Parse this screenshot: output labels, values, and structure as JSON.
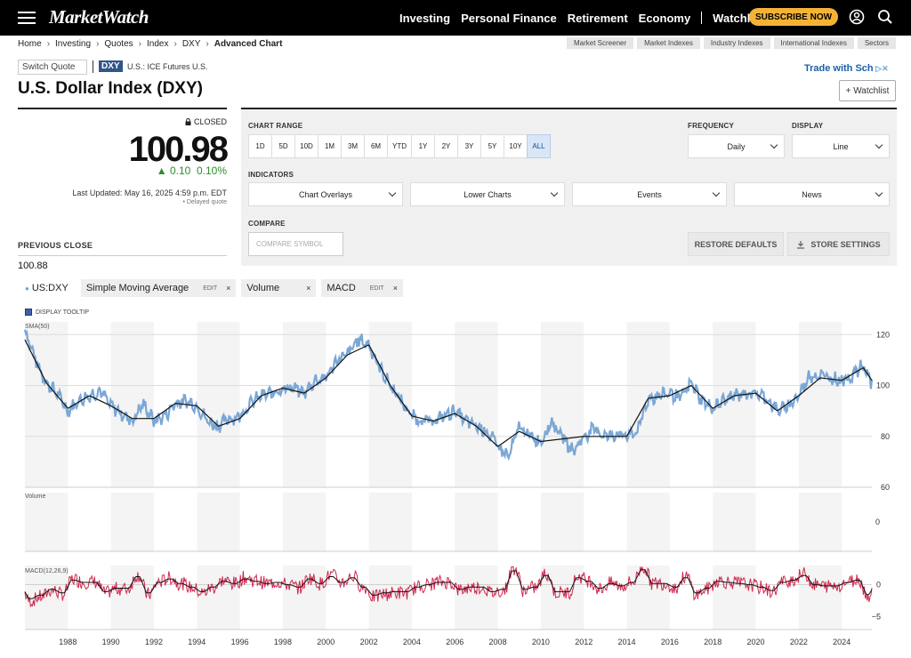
{
  "nav": {
    "logo": "MarketWatch",
    "links": [
      "Investing",
      "Personal Finance",
      "Retirement",
      "Economy"
    ],
    "watchlist": "Watchlist",
    "subscribe": "SUBSCRIBE NOW"
  },
  "breadcrumb": [
    "Home",
    "Investing",
    "Quotes",
    "Index",
    "DXY",
    "Advanced Chart"
  ],
  "top_tabs": [
    "Market Screener",
    "Market Indexes",
    "Industry Indexes",
    "International Indexes",
    "Sectors"
  ],
  "quote": {
    "switch": "Switch Quote",
    "symbol": "DXY",
    "exchange": "U.S.: ICE Futures U.S.",
    "title": "U.S. Dollar Index (DXY)",
    "status": "CLOSED",
    "price": "100.98",
    "change": "0.10",
    "change_pct": "0.10%",
    "updated": "Last Updated: May 16, 2025 4:59 p.m. EDT",
    "delayed": "Delayed quote",
    "prev_label": "PREVIOUS CLOSE",
    "prev_value": "100.88",
    "ad": "Trade with Sch",
    "watchlist_btn": "+ Watchlist"
  },
  "controls": {
    "range_label": "CHART RANGE",
    "ranges": [
      "1D",
      "5D",
      "10D",
      "1M",
      "3M",
      "6M",
      "YTD",
      "1Y",
      "2Y",
      "3Y",
      "5Y",
      "10Y",
      "ALL"
    ],
    "active_range": "ALL",
    "frequency_label": "FREQUENCY",
    "frequency": "Daily",
    "display_label": "DISPLAY",
    "display": "Line",
    "indicators_label": "INDICATORS",
    "indicators": [
      "Chart Overlays",
      "Lower Charts",
      "Events",
      "News"
    ],
    "compare_label": "COMPARE",
    "compare_placeholder": "COMPARE SYMBOL",
    "restore": "RESTORE DEFAULTS",
    "store": "STORE SETTINGS"
  },
  "chips": {
    "symbol": "US:DXY",
    "sma": "Simple Moving Average",
    "volume": "Volume",
    "macd": "MACD",
    "edit": "EDIT",
    "close": "×"
  },
  "tooltip_label": "DISPLAY TOOLTIP",
  "chart_data": {
    "type": "line",
    "price_panel_label": "SMA(50)",
    "volume_panel_label": "Volume",
    "macd_panel_label": "MACD(12,26,9)",
    "x_ticks": [
      "1988",
      "1990",
      "1992",
      "1994",
      "1996",
      "1998",
      "2000",
      "2002",
      "2004",
      "2006",
      "2008",
      "2010",
      "2012",
      "2014",
      "2016",
      "2018",
      "2020",
      "2022",
      "2024"
    ],
    "price_ticks": [
      120,
      100,
      80,
      60
    ],
    "price_ylim": [
      60,
      125
    ],
    "volume_ticks": [
      0
    ],
    "macd_ticks": [
      0,
      -5
    ],
    "macd_ylim": [
      -7,
      3
    ],
    "xlim": [
      1986.0,
      2025.4
    ],
    "series": [
      {
        "name": "US:DXY",
        "x": [
          1986.0,
          1986.5,
          1987.0,
          1987.5,
          1988.0,
          1988.5,
          1989.0,
          1989.5,
          1990.0,
          1990.5,
          1991.0,
          1991.5,
          1992.0,
          1992.5,
          1993.0,
          1993.5,
          1994.0,
          1994.5,
          1995.0,
          1995.5,
          1996.0,
          1996.5,
          1997.0,
          1997.5,
          1998.0,
          1998.5,
          1999.0,
          1999.5,
          2000.0,
          2000.5,
          2001.0,
          2001.5,
          2002.0,
          2002.5,
          2003.0,
          2003.5,
          2004.0,
          2004.5,
          2005.0,
          2005.5,
          2006.0,
          2006.5,
          2007.0,
          2007.5,
          2008.0,
          2008.5,
          2009.0,
          2009.5,
          2010.0,
          2010.5,
          2011.0,
          2011.5,
          2012.0,
          2012.5,
          2013.0,
          2013.5,
          2014.0,
          2014.5,
          2015.0,
          2015.5,
          2016.0,
          2016.5,
          2017.0,
          2017.5,
          2018.0,
          2018.5,
          2019.0,
          2019.5,
          2020.0,
          2020.5,
          2021.0,
          2021.5,
          2022.0,
          2022.5,
          2023.0,
          2023.5,
          2024.0,
          2024.5,
          2025.0,
          2025.4
        ],
        "values": [
          122,
          110,
          101,
          97,
          90,
          94,
          96,
          98,
          92,
          89,
          86,
          93,
          86,
          88,
          93,
          94,
          92,
          86,
          84,
          87,
          88,
          93,
          96,
          97,
          99,
          99,
          97,
          102,
          103,
          110,
          112,
          118,
          116,
          107,
          100,
          94,
          88,
          86,
          86,
          88,
          90,
          86,
          84,
          82,
          76,
          72,
          84,
          80,
          78,
          86,
          80,
          74,
          80,
          83,
          80,
          81,
          80,
          82,
          95,
          96,
          97,
          95,
          101,
          94,
          91,
          94,
          96,
          97,
          97,
          95,
          90,
          92,
          96,
          104,
          104,
          103,
          102,
          104,
          108,
          101
        ]
      },
      {
        "name": "SMA(50)",
        "x": [
          1986.0,
          1987.0,
          1988.0,
          1989.0,
          1990.0,
          1991.0,
          1992.0,
          1993.0,
          1994.0,
          1995.0,
          1996.0,
          1997.0,
          1998.0,
          1999.0,
          2000.0,
          2001.0,
          2002.0,
          2003.0,
          2004.0,
          2005.0,
          2006.0,
          2007.0,
          2008.0,
          2009.0,
          2010.0,
          2011.0,
          2012.0,
          2013.0,
          2014.0,
          2015.0,
          2016.0,
          2017.0,
          2018.0,
          2019.0,
          2020.0,
          2021.0,
          2022.0,
          2023.0,
          2024.0,
          2025.0,
          2025.4
        ],
        "values": [
          118,
          101,
          91,
          96,
          92,
          87,
          87,
          93,
          92,
          84,
          87,
          96,
          99,
          97,
          103,
          112,
          116,
          100,
          88,
          86,
          89,
          84,
          76,
          82,
          78,
          79,
          80,
          80,
          80,
          95,
          96,
          100,
          91,
          96,
          97,
          90,
          96,
          103,
          102,
          107,
          102
        ]
      }
    ]
  }
}
